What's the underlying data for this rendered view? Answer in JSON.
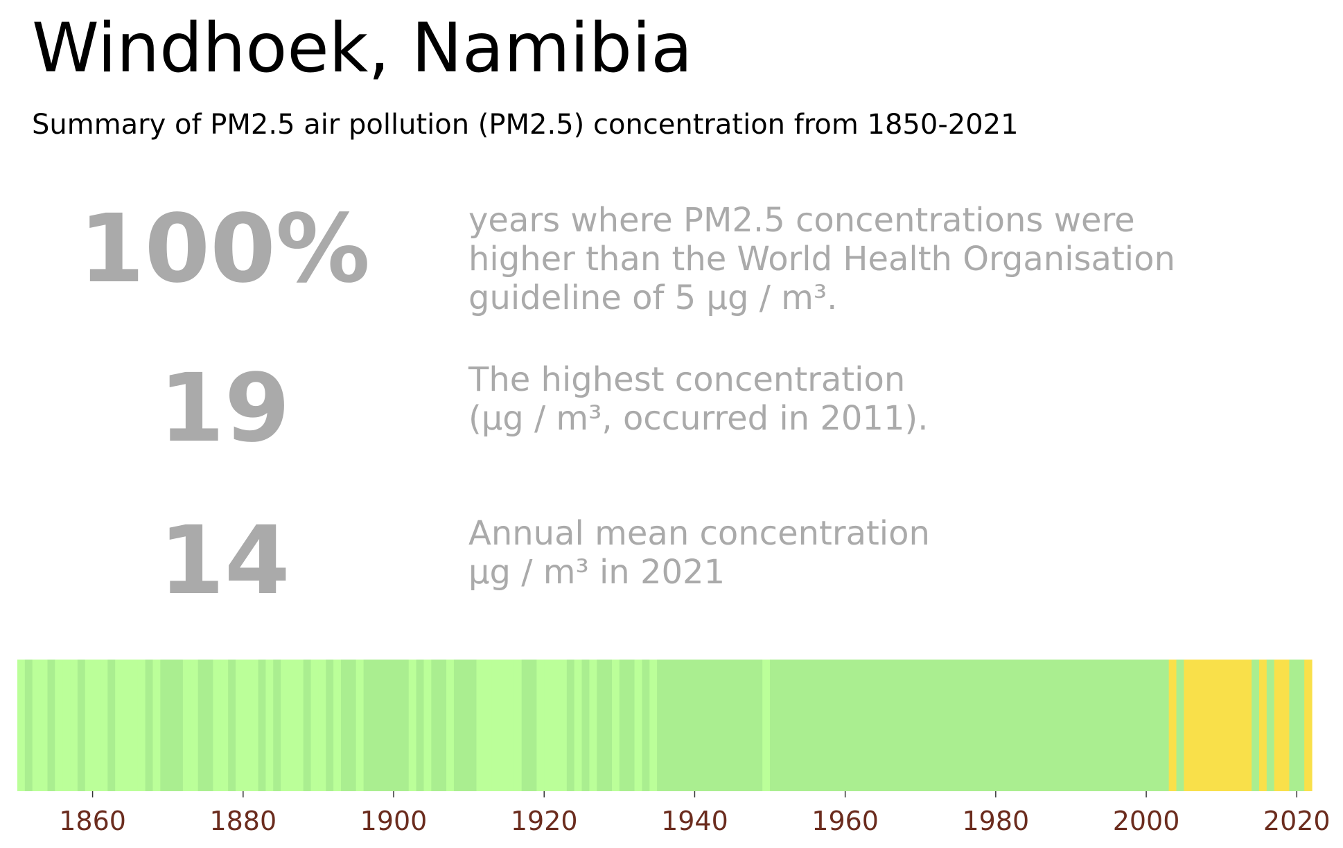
{
  "header": {
    "title": "Windhoek, Namibia",
    "subtitle": "Summary of PM2.5 air pollution (PM2.5) concentration from 1850-2021"
  },
  "stats": [
    {
      "value": "100%",
      "description": "years where PM2.5 concentrations were\nhigher than the World Health Organisation\nguideline of 5 µg / m³."
    },
    {
      "value": "19",
      "description": "The highest concentration\n(µg / m³, occurred in 2011)."
    },
    {
      "value": "14",
      "description": "Annual mean concentration\nµg / m³ in 2021"
    }
  ],
  "colors": {
    "stat_text": "#aaaaaa",
    "tick_label": "#6b2c1e",
    "band_light": "#bbff99",
    "band_mid": "#aaee90",
    "band_yellow": "#f9e04a"
  },
  "chart_data": {
    "type": "heatmap",
    "title": "",
    "xlabel": "",
    "ylabel": "",
    "x_range": [
      1850,
      2022
    ],
    "xticks": [
      1860,
      1880,
      1900,
      1920,
      1940,
      1960,
      1980,
      2000,
      2020
    ],
    "category_colors": {
      "L": "#bbff99",
      "M": "#aaee90",
      "Y": "#f9e04a"
    },
    "years": [
      1850,
      1851,
      1852,
      1853,
      1854,
      1855,
      1856,
      1857,
      1858,
      1859,
      1860,
      1861,
      1862,
      1863,
      1864,
      1865,
      1866,
      1867,
      1868,
      1869,
      1870,
      1871,
      1872,
      1873,
      1874,
      1875,
      1876,
      1877,
      1878,
      1879,
      1880,
      1881,
      1882,
      1883,
      1884,
      1885,
      1886,
      1887,
      1888,
      1889,
      1890,
      1891,
      1892,
      1893,
      1894,
      1895,
      1896,
      1897,
      1898,
      1899,
      1900,
      1901,
      1902,
      1903,
      1904,
      1905,
      1906,
      1907,
      1908,
      1909,
      1910,
      1911,
      1912,
      1913,
      1914,
      1915,
      1916,
      1917,
      1918,
      1919,
      1920,
      1921,
      1922,
      1923,
      1924,
      1925,
      1926,
      1927,
      1928,
      1929,
      1930,
      1931,
      1932,
      1933,
      1934,
      1935,
      1936,
      1937,
      1938,
      1939,
      1940,
      1941,
      1942,
      1943,
      1944,
      1945,
      1946,
      1947,
      1948,
      1949,
      1950,
      1951,
      1952,
      1953,
      1954,
      1955,
      1956,
      1957,
      1958,
      1959,
      1960,
      1961,
      1962,
      1963,
      1964,
      1965,
      1966,
      1967,
      1968,
      1969,
      1970,
      1971,
      1972,
      1973,
      1974,
      1975,
      1976,
      1977,
      1978,
      1979,
      1980,
      1981,
      1982,
      1983,
      1984,
      1985,
      1986,
      1987,
      1988,
      1989,
      1990,
      1991,
      1992,
      1993,
      1994,
      1995,
      1996,
      1997,
      1998,
      1999,
      2000,
      2001,
      2002,
      2003,
      2004,
      2005,
      2006,
      2007,
      2008,
      2009,
      2010,
      2011,
      2012,
      2013,
      2014,
      2015,
      2016,
      2017,
      2018,
      2019,
      2020,
      2021
    ],
    "categories": [
      "L",
      "M",
      "L",
      "L",
      "M",
      "L",
      "L",
      "L",
      "M",
      "L",
      "L",
      "L",
      "M",
      "L",
      "L",
      "L",
      "L",
      "M",
      "L",
      "M",
      "M",
      "M",
      "L",
      "L",
      "M",
      "M",
      "L",
      "L",
      "M",
      "L",
      "L",
      "L",
      "M",
      "L",
      "M",
      "L",
      "L",
      "L",
      "M",
      "L",
      "L",
      "M",
      "L",
      "M",
      "M",
      "L",
      "M",
      "M",
      "M",
      "M",
      "M",
      "M",
      "L",
      "M",
      "L",
      "M",
      "M",
      "L",
      "M",
      "M",
      "M",
      "L",
      "L",
      "L",
      "L",
      "L",
      "L",
      "M",
      "M",
      "L",
      "L",
      "L",
      "L",
      "M",
      "L",
      "M",
      "L",
      "M",
      "M",
      "L",
      "M",
      "M",
      "L",
      "M",
      "L",
      "M",
      "M",
      "M",
      "M",
      "M",
      "M",
      "M",
      "M",
      "M",
      "M",
      "M",
      "M",
      "M",
      "M",
      "L",
      "M",
      "M",
      "M",
      "M",
      "M",
      "M",
      "M",
      "M",
      "M",
      "M",
      "M",
      "M",
      "M",
      "M",
      "M",
      "M",
      "M",
      "M",
      "M",
      "M",
      "M",
      "M",
      "M",
      "M",
      "M",
      "M",
      "M",
      "M",
      "M",
      "M",
      "M",
      "M",
      "M",
      "M",
      "M",
      "M",
      "M",
      "M",
      "M",
      "M",
      "M",
      "M",
      "M",
      "M",
      "M",
      "M",
      "M",
      "M",
      "M",
      "M",
      "M",
      "M",
      "M",
      "Y",
      "M",
      "Y",
      "Y",
      "Y",
      "Y",
      "Y",
      "Y",
      "Y",
      "Y",
      "Y",
      "M",
      "Y",
      "M",
      "Y",
      "Y",
      "M",
      "M",
      "Y"
    ]
  }
}
